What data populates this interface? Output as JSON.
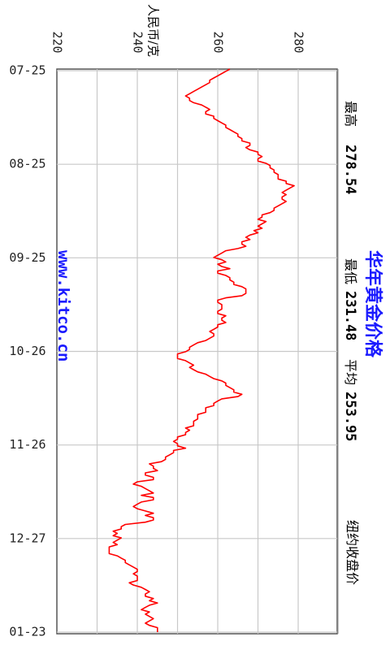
{
  "chart_data": {
    "type": "line",
    "title": "华年黄金价格",
    "ylabel": "人民币/克",
    "ylim": [
      220,
      290
    ],
    "yticks": [
      "220",
      "240",
      "260",
      "280"
    ],
    "xticks": [
      "07-25",
      "08-25",
      "09-25",
      "10-26",
      "11-26",
      "12-27",
      "01-23"
    ],
    "grid": true,
    "color": "#ff0000",
    "series": [
      {
        "values": [
          263,
          262,
          261,
          260,
          259,
          258,
          258,
          257,
          256,
          255,
          254,
          253,
          252,
          253,
          253,
          254,
          256,
          257,
          258,
          257,
          257,
          259,
          259,
          260,
          261,
          262,
          262,
          263,
          264,
          265,
          265,
          266,
          266,
          268,
          268,
          267,
          268,
          270,
          270,
          271,
          270,
          270,
          272,
          273,
          273,
          274,
          274,
          275,
          275,
          275,
          277,
          277,
          279,
          278,
          277,
          276,
          277,
          276,
          276,
          277,
          276,
          275,
          274,
          274,
          273,
          271,
          271,
          270,
          272,
          271,
          270,
          271,
          269,
          270,
          268,
          267,
          268,
          266,
          266,
          267,
          265,
          262,
          261,
          260,
          259,
          261,
          262,
          260,
          261,
          263,
          260,
          260,
          262,
          263,
          263,
          264,
          264,
          266,
          267,
          267,
          267,
          266,
          262,
          260,
          260,
          261,
          261,
          261,
          260,
          260,
          262,
          261,
          261,
          262,
          260,
          260,
          259,
          258,
          259,
          259,
          258,
          257,
          255,
          254,
          253,
          253,
          252,
          250,
          250,
          250,
          252,
          253,
          254,
          253,
          254,
          255,
          257,
          258,
          259,
          261,
          262,
          262,
          263,
          264,
          264,
          266,
          265,
          261,
          260,
          259,
          259,
          257,
          257,
          257,
          255,
          255,
          255,
          254,
          254,
          254,
          252,
          253,
          252,
          252,
          250,
          250,
          249,
          250,
          250,
          252,
          249,
          249,
          248,
          247,
          247,
          246,
          243,
          244,
          244,
          245,
          242,
          242,
          244,
          244,
          240,
          239,
          241,
          242,
          243,
          244,
          241,
          244,
          244,
          241,
          240,
          239,
          240,
          242,
          244,
          242,
          244,
          244,
          242,
          237,
          236,
          236,
          234,
          235,
          234,
          236,
          235,
          234,
          235,
          233,
          233,
          233,
          233,
          235,
          236,
          237,
          237,
          238,
          239,
          240,
          240,
          239,
          240,
          240,
          240,
          238,
          239,
          241,
          242,
          243,
          242,
          242,
          244,
          243,
          245,
          243,
          242,
          241,
          243,
          242,
          243,
          244,
          243,
          242,
          243,
          245,
          245,
          245
        ]
      }
    ],
    "annotations": {
      "high_label": "最高",
      "high_value": "278.54",
      "low_label": "最低",
      "low_value": "231.48",
      "avg_label": "平均",
      "avg_value": "253.95",
      "close_note": "纽约收盘价",
      "watermark": "www.kitco.cn"
    }
  }
}
